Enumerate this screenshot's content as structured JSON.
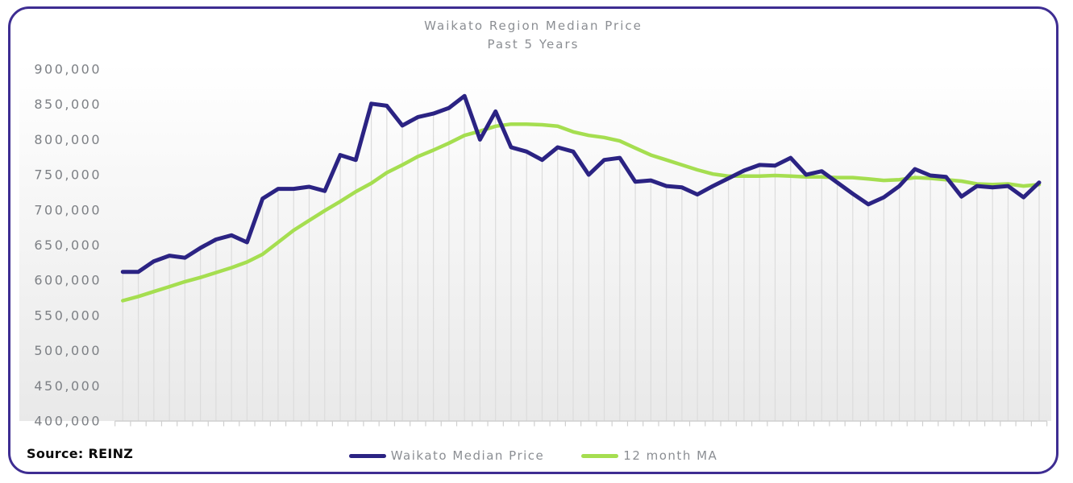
{
  "page": {
    "background": "#ffffff",
    "card_border_color": "#3E2D92"
  },
  "chart": {
    "title": "Waikato Region Median Price",
    "subtitle": "Past 5 Years",
    "source": "Source: REINZ"
  },
  "chart_data": {
    "type": "line",
    "title": "Waikato Region Median Price",
    "subtitle": "Past 5 Years",
    "source": "Source: REINZ",
    "ylim": [
      400000,
      900000
    ],
    "y_tick_step": 50000,
    "y_ticks": [
      {
        "value": 900000,
        "label": "900,000"
      },
      {
        "value": 850000,
        "label": "850,000"
      },
      {
        "value": 800000,
        "label": "800,000"
      },
      {
        "value": 750000,
        "label": "750,000"
      },
      {
        "value": 700000,
        "label": "700,000"
      },
      {
        "value": 650000,
        "label": "650,000"
      },
      {
        "value": 600000,
        "label": "600,000"
      },
      {
        "value": 550000,
        "label": "550,000"
      },
      {
        "value": 500000,
        "label": "500,000"
      },
      {
        "value": 450000,
        "label": "450,000"
      },
      {
        "value": 400000,
        "label": "400,000"
      }
    ],
    "x_count": 60,
    "x_axis_labels_shown": false,
    "x_unit": "month",
    "grid": "vertical-drop-lines-only",
    "legend_position": "bottom-center",
    "colors": {
      "drop_line": "#dcdcdc",
      "axis_line": "#cfcfcf",
      "plot_gradient_top": "#ffffff",
      "plot_gradient_bottom": "#e9e9e9",
      "text_gray": "#8b8e93"
    },
    "series": [
      {
        "name": "Waikato Median Price",
        "color": "#2B2383",
        "stroke_width": 5,
        "values": [
          612000,
          612000,
          627000,
          635000,
          632000,
          646000,
          658000,
          664000,
          654000,
          716000,
          730000,
          730000,
          733000,
          727000,
          778000,
          771000,
          851000,
          848000,
          820000,
          832000,
          837000,
          845000,
          862000,
          800000,
          840000,
          789000,
          783000,
          771000,
          789000,
          783000,
          750000,
          771000,
          774000,
          740000,
          742000,
          734000,
          732000,
          722000,
          734000,
          745000,
          756000,
          764000,
          763000,
          774000,
          750000,
          755000,
          739000,
          723000,
          708000,
          718000,
          734000,
          758000,
          749000,
          747000,
          719000,
          734000,
          732000,
          734000,
          718000,
          739000
        ]
      },
      {
        "name": "12 month MA",
        "color": "#A5DE50",
        "stroke_width": 4.5,
        "values": [
          571000,
          577000,
          584000,
          591000,
          598000,
          604000,
          611000,
          618000,
          626000,
          637000,
          654000,
          671000,
          685000,
          699000,
          712000,
          726000,
          738000,
          753000,
          764000,
          776000,
          785000,
          795000,
          806000,
          812000,
          819000,
          822000,
          822000,
          821000,
          819000,
          811000,
          806000,
          803000,
          798000,
          788000,
          778000,
          771000,
          764000,
          757000,
          751000,
          748000,
          748000,
          748000,
          749000,
          748000,
          747000,
          747000,
          746000,
          746000,
          744000,
          742000,
          743000,
          746000,
          745000,
          743000,
          741000,
          737000,
          736000,
          737000,
          734000,
          736000
        ]
      }
    ]
  }
}
